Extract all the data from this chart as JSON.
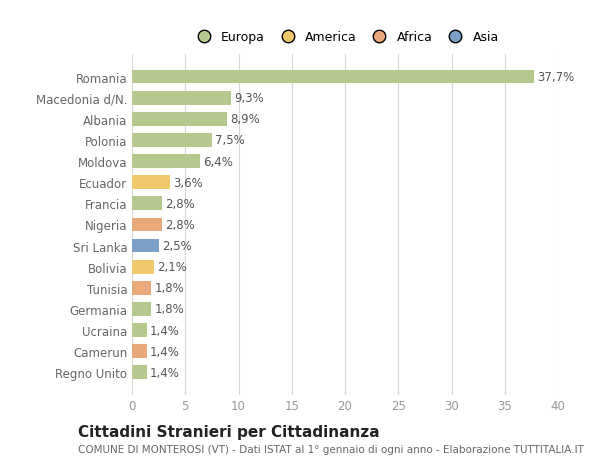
{
  "countries": [
    "Romania",
    "Macedonia d/N.",
    "Albania",
    "Polonia",
    "Moldova",
    "Ecuador",
    "Francia",
    "Nigeria",
    "Sri Lanka",
    "Bolivia",
    "Tunisia",
    "Germania",
    "Ucraina",
    "Camerun",
    "Regno Unito"
  ],
  "values": [
    37.7,
    9.3,
    8.9,
    7.5,
    6.4,
    3.6,
    2.8,
    2.8,
    2.5,
    2.1,
    1.8,
    1.8,
    1.4,
    1.4,
    1.4
  ],
  "labels": [
    "37,7%",
    "9,3%",
    "8,9%",
    "7,5%",
    "6,4%",
    "3,6%",
    "2,8%",
    "2,8%",
    "2,5%",
    "2,1%",
    "1,8%",
    "1,8%",
    "1,4%",
    "1,4%",
    "1,4%"
  ],
  "continents": [
    "Europa",
    "Europa",
    "Europa",
    "Europa",
    "Europa",
    "America",
    "Europa",
    "Africa",
    "Asia",
    "America",
    "Africa",
    "Europa",
    "Europa",
    "Africa",
    "Europa"
  ],
  "colors": {
    "Europa": "#b5c98e",
    "America": "#f0c96b",
    "Africa": "#e8a87c",
    "Asia": "#7b9fc7"
  },
  "legend_labels": [
    "Europa",
    "America",
    "Africa",
    "Asia"
  ],
  "legend_colors": [
    "#b5c98e",
    "#f0c96b",
    "#e8a87c",
    "#7b9fc7"
  ],
  "xlim": [
    0,
    40
  ],
  "xticks": [
    0,
    5,
    10,
    15,
    20,
    25,
    30,
    35,
    40
  ],
  "title": "Cittadini Stranieri per Cittadinanza",
  "subtitle": "COMUNE DI MONTEROSI (VT) - Dati ISTAT al 1° gennaio di ogni anno - Elaborazione TUTTITALIA.IT",
  "bg_color": "#ffffff",
  "grid_color": "#d8d8d8",
  "bar_height": 0.65,
  "label_fontsize": 8.5,
  "tick_fontsize": 8.5,
  "title_fontsize": 11,
  "subtitle_fontsize": 7.5,
  "legend_fontsize": 9
}
